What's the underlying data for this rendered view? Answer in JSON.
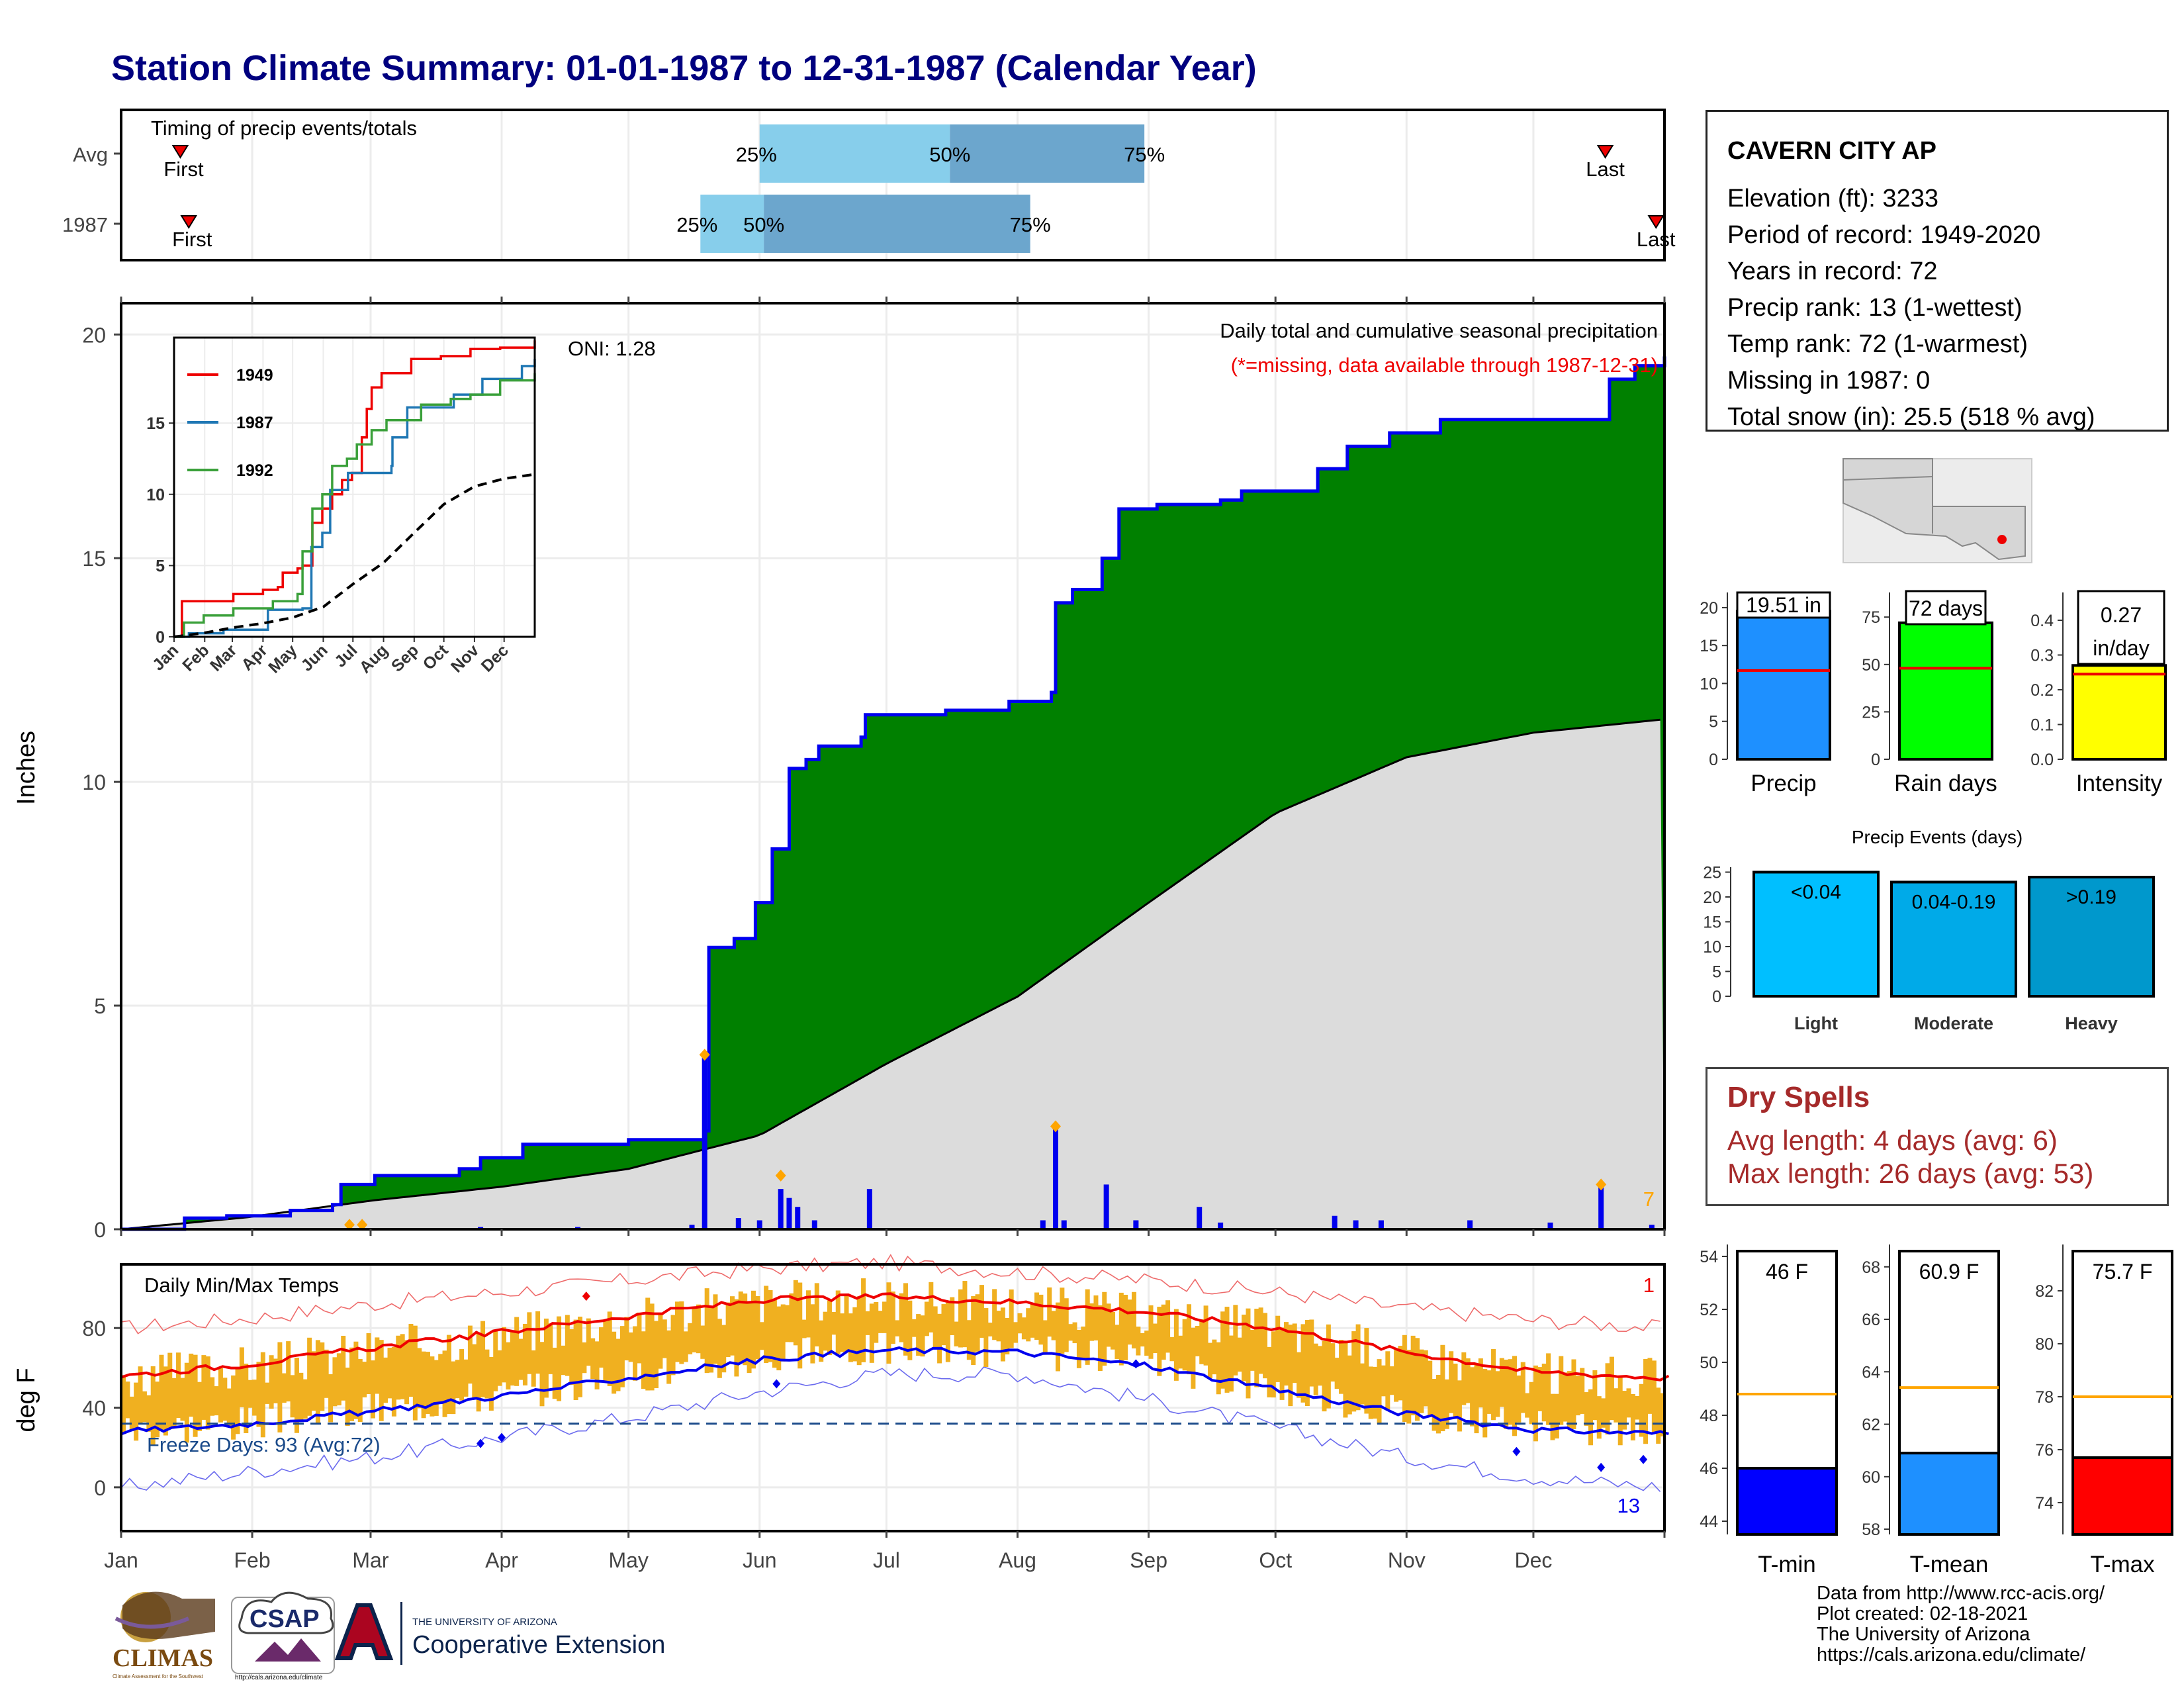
{
  "title": "Station Climate Summary: 01-01-1987 to 12-31-1987 (Calendar Year)",
  "station": {
    "name": "CAVERN CITY AP",
    "rows": [
      "Elevation (ft): 3233",
      "Period of record: 1949-2020",
      "Years in record: 72",
      "Precip rank: 13 (1-wettest)",
      "Temp rank: 72 (1-warmest)",
      "Missing in 1987: 0",
      "Total snow (in): 25.5 (518 % avg)"
    ]
  },
  "dry_spells": {
    "heading": "Dry Spells",
    "avg_length": "Avg length: 4 days (avg: 6)",
    "max_length": "Max length: 26 days (avg: 53)"
  },
  "credits": [
    "Data from http://www.rcc-acis.org/",
    "Plot created: 02-18-2021",
    "The University of Arizona",
    "https://cals.arizona.edu/climate/"
  ],
  "logos": {
    "climas": "CLIMAS",
    "climas_sub": "Climate Assessment for the Southwest",
    "csap": "CSAP",
    "csap_url": "http://cals.arizona.edu/climate",
    "ua_line1": "THE UNIVERSITY OF ARIZONA",
    "ua_line2": "Cooperative Extension"
  },
  "colors": {
    "title": "#00007f",
    "precip_area": "#008000",
    "normal_area": "#dcdcdc",
    "precip_line": "#0000ee",
    "daily_bar": "#0000ee",
    "temp_bar": "#f0b020",
    "tmax_line": "#ee0000",
    "tmin_line": "#0000ee",
    "q_light": "#87ceeb",
    "q_dark": "#6ca6cd"
  },
  "chart_data": [
    {
      "type": "bar",
      "name": "timing",
      "title": "Timing of precip events/totals",
      "rows": [
        {
          "label": "Avg",
          "first": "Jan 15",
          "q25": "Jun 1",
          "q50": "Jul 16",
          "q75": "Aug 31",
          "last": "Dec 18",
          "first_text": "First",
          "last_text": "Last"
        },
        {
          "label": "1987",
          "first": "Jan 17",
          "q25": "May 18",
          "q50": "Jun 2",
          "q75": "Aug 4",
          "last": "Dec 30",
          "first_text": "First",
          "last_text": "Last"
        }
      ],
      "quantile_labels": [
        "25%",
        "50%",
        "75%"
      ]
    },
    {
      "type": "area",
      "name": "cumulative_precip",
      "title": "Daily total and cumulative seasonal precipitation",
      "subtitle": "(*=missing, data available through 1987-12-31)",
      "annotation": "ONI: 1.28",
      "count_label": "7",
      "ylabel": "Inches",
      "ylim": [
        0,
        20.7
      ],
      "yticks": [
        0,
        5,
        10,
        15,
        20
      ],
      "cumulative_1987": [
        [
          0,
          0.0
        ],
        [
          15,
          0.25
        ],
        [
          25,
          0.3
        ],
        [
          40,
          0.42
        ],
        [
          50,
          0.55
        ],
        [
          52,
          1.0
        ],
        [
          60,
          1.2
        ],
        [
          80,
          1.35
        ],
        [
          85,
          1.6
        ],
        [
          95,
          1.9
        ],
        [
          120,
          2.0
        ],
        [
          132,
          2.0
        ],
        [
          138,
          2.2
        ],
        [
          139,
          6.3
        ],
        [
          145,
          6.5
        ],
        [
          150,
          7.3
        ],
        [
          154,
          8.5
        ],
        [
          158,
          10.3
        ],
        [
          162,
          10.5
        ],
        [
          165,
          10.8
        ],
        [
          175,
          11.0
        ],
        [
          176,
          11.5
        ],
        [
          195,
          11.6
        ],
        [
          210,
          11.8
        ],
        [
          220,
          12.0
        ],
        [
          221,
          14.0
        ],
        [
          225,
          14.3
        ],
        [
          232,
          15.0
        ],
        [
          236,
          16.1
        ],
        [
          245,
          16.2
        ],
        [
          260,
          16.3
        ],
        [
          265,
          16.5
        ],
        [
          283,
          17.0
        ],
        [
          290,
          17.5
        ],
        [
          300,
          17.8
        ],
        [
          312,
          18.1
        ],
        [
          325,
          18.1
        ],
        [
          350,
          18.1
        ],
        [
          352,
          19.0
        ],
        [
          358,
          19.3
        ],
        [
          365,
          19.51
        ]
      ],
      "normal_cumulative": [
        [
          0,
          0.0
        ],
        [
          30,
          0.27
        ],
        [
          60,
          0.65
        ],
        [
          90,
          0.95
        ],
        [
          120,
          1.35
        ],
        [
          151,
          2.1
        ],
        [
          181,
          3.7
        ],
        [
          212,
          5.2
        ],
        [
          243,
          7.3
        ],
        [
          273,
          9.3
        ],
        [
          304,
          10.55
        ],
        [
          334,
          11.1
        ],
        [
          365,
          11.4
        ]
      ],
      "daily_bars": [
        [
          54,
          0.12
        ],
        [
          57,
          0.1
        ],
        [
          85,
          0.05
        ],
        [
          108,
          0.05
        ],
        [
          135,
          0.1
        ],
        [
          138,
          3.9
        ],
        [
          146,
          0.25
        ],
        [
          151,
          0.2
        ],
        [
          156,
          0.9
        ],
        [
          158,
          0.7
        ],
        [
          160,
          0.5
        ],
        [
          164,
          0.2
        ],
        [
          177,
          0.9
        ],
        [
          218,
          0.2
        ],
        [
          221,
          2.3
        ],
        [
          223,
          0.2
        ],
        [
          233,
          1.0
        ],
        [
          240,
          0.2
        ],
        [
          255,
          0.5
        ],
        [
          260,
          0.15
        ],
        [
          287,
          0.3
        ],
        [
          292,
          0.2
        ],
        [
          298,
          0.2
        ],
        [
          319,
          0.2
        ],
        [
          338,
          0.15
        ],
        [
          350,
          0.95
        ],
        [
          362,
          0.1
        ]
      ],
      "markers": [
        [
          54,
          0.1
        ],
        [
          57,
          0.1
        ],
        [
          138,
          3.9
        ],
        [
          156,
          1.2
        ],
        [
          221,
          2.3
        ],
        [
          350,
          1.0
        ]
      ]
    },
    {
      "type": "line",
      "name": "inset_cumulative",
      "series": [
        {
          "name": "1949",
          "color": "#ee0000",
          "values": [
            [
              0,
              0
            ],
            [
              8,
              2.5
            ],
            [
              30,
              2.5
            ],
            [
              60,
              3.0
            ],
            [
              90,
              3.3
            ],
            [
              105,
              3.5
            ],
            [
              110,
              4.5
            ],
            [
              125,
              4.8
            ],
            [
              130,
              5.0
            ],
            [
              140,
              8.0
            ],
            [
              150,
              9.0
            ],
            [
              160,
              10.0
            ],
            [
              170,
              11.0
            ],
            [
              180,
              11.5
            ],
            [
              190,
              14.0
            ],
            [
              195,
              16.0
            ],
            [
              200,
              17.5
            ],
            [
              210,
              18.5
            ],
            [
              240,
              19.5
            ],
            [
              270,
              19.7
            ],
            [
              300,
              20.2
            ],
            [
              330,
              20.3
            ],
            [
              365,
              20.8
            ]
          ]
        },
        {
          "name": "1987",
          "color": "#1f77b4",
          "values": [
            [
              0,
              0
            ],
            [
              15,
              0.25
            ],
            [
              50,
              0.5
            ],
            [
              95,
              1.9
            ],
            [
              130,
              2.0
            ],
            [
              139,
              6.3
            ],
            [
              150,
              7.3
            ],
            [
              158,
              10.3
            ],
            [
              176,
              11.5
            ],
            [
              220,
              12.0
            ],
            [
              221,
              14.0
            ],
            [
              236,
              16.1
            ],
            [
              283,
              17.0
            ],
            [
              312,
              18.1
            ],
            [
              350,
              18.1
            ],
            [
              352,
              19.0
            ],
            [
              365,
              19.51
            ]
          ]
        },
        {
          "name": "1992",
          "color": "#3aa03a",
          "values": [
            [
              0,
              0
            ],
            [
              10,
              1.0
            ],
            [
              30,
              1.5
            ],
            [
              60,
              2.0
            ],
            [
              100,
              2.5
            ],
            [
              125,
              3.0
            ],
            [
              130,
              6.0
            ],
            [
              140,
              9.0
            ],
            [
              150,
              10.0
            ],
            [
              160,
              12.0
            ],
            [
              175,
              12.5
            ],
            [
              185,
              13.5
            ],
            [
              200,
              14.5
            ],
            [
              215,
              15.2
            ],
            [
              250,
              16.3
            ],
            [
              280,
              16.7
            ],
            [
              300,
              17.0
            ],
            [
              330,
              18.0
            ],
            [
              365,
              18.5
            ]
          ]
        },
        {
          "name": "",
          "color": "#000000",
          "dashed": true,
          "values": [
            [
              0,
              0
            ],
            [
              30,
              0.27
            ],
            [
              60,
              0.65
            ],
            [
              90,
              0.95
            ],
            [
              120,
              1.35
            ],
            [
              151,
              2.1
            ],
            [
              181,
              3.7
            ],
            [
              212,
              5.2
            ],
            [
              243,
              7.3
            ],
            [
              273,
              9.3
            ],
            [
              304,
              10.55
            ],
            [
              334,
              11.1
            ],
            [
              365,
              11.4
            ]
          ]
        }
      ],
      "ylim": [
        0,
        21
      ],
      "yticks": [
        0,
        5,
        10,
        15
      ],
      "xticks": [
        "Jan",
        "Feb",
        "Mar",
        "Apr",
        "May",
        "Jun",
        "Jul",
        "Aug",
        "Sep",
        "Oct",
        "Nov",
        "Dec"
      ]
    },
    {
      "type": "area",
      "name": "daily_temps",
      "title": "Daily Min/Max Temps",
      "freeze_text": "Freeze Days: 93 (Avg:72)",
      "record_high_count": "1",
      "record_low_count": "13",
      "ylabel": "deg F",
      "ylim": [
        -22,
        112
      ],
      "yticks": [
        0,
        40,
        80
      ],
      "freeze_line": 32,
      "normal_tmax": [
        [
          0,
          56
        ],
        [
          31,
          62
        ],
        [
          59,
          70
        ],
        [
          90,
          78
        ],
        [
          120,
          86
        ],
        [
          151,
          94
        ],
        [
          181,
          96
        ],
        [
          212,
          93
        ],
        [
          243,
          88
        ],
        [
          273,
          80
        ],
        [
          304,
          68
        ],
        [
          334,
          58
        ],
        [
          365,
          55
        ]
      ],
      "normal_tmin": [
        [
          0,
          28
        ],
        [
          31,
          32
        ],
        [
          59,
          38
        ],
        [
          90,
          46
        ],
        [
          120,
          55
        ],
        [
          151,
          64
        ],
        [
          181,
          69
        ],
        [
          212,
          68
        ],
        [
          243,
          61
        ],
        [
          273,
          49
        ],
        [
          304,
          37
        ],
        [
          334,
          29
        ],
        [
          365,
          27
        ]
      ],
      "record_tmax": [
        [
          0,
          80
        ],
        [
          31,
          85
        ],
        [
          59,
          92
        ],
        [
          90,
          98
        ],
        [
          120,
          104
        ],
        [
          151,
          110
        ],
        [
          181,
          113
        ],
        [
          212,
          108
        ],
        [
          243,
          104
        ],
        [
          273,
          98
        ],
        [
          304,
          90
        ],
        [
          334,
          84
        ],
        [
          365,
          80
        ]
      ],
      "record_tmin": [
        [
          0,
          0
        ],
        [
          31,
          8
        ],
        [
          59,
          15
        ],
        [
          90,
          25
        ],
        [
          120,
          35
        ],
        [
          151,
          48
        ],
        [
          181,
          57
        ],
        [
          212,
          57
        ],
        [
          243,
          44
        ],
        [
          273,
          30
        ],
        [
          304,
          15
        ],
        [
          334,
          5
        ],
        [
          365,
          0
        ]
      ],
      "xticks": [
        "Jan",
        "Feb",
        "Mar",
        "Apr",
        "May",
        "Jun",
        "Jul",
        "Aug",
        "Sep",
        "Oct",
        "Nov",
        "Dec"
      ]
    },
    {
      "type": "bar",
      "name": "precip_totals",
      "bars": [
        {
          "category": "Precip",
          "value": 19.51,
          "label": "19.51 in",
          "avg": 11.7,
          "ylim": [
            0,
            22
          ],
          "yticks": [
            0,
            5,
            10,
            15,
            20
          ],
          "color": "#1e90ff"
        },
        {
          "category": "Rain days",
          "value": 72,
          "label": "72 days",
          "avg": 48,
          "ylim": [
            0,
            88
          ],
          "yticks": [
            0,
            25,
            50,
            75
          ],
          "color": "#00ff00"
        },
        {
          "category": "Intensity",
          "value": 0.27,
          "label_line1": "0.27",
          "label_line2": "in/day",
          "avg": 0.245,
          "ylim": [
            0,
            0.48
          ],
          "yticks": [
            0.0,
            0.1,
            0.2,
            0.3,
            0.4
          ],
          "color": "#ffff00"
        }
      ]
    },
    {
      "type": "bar",
      "name": "precip_events",
      "title": "Precip Events (days)",
      "categories": [
        "Light",
        "Moderate",
        "Heavy"
      ],
      "bar_labels": [
        "<0.04",
        "0.04-0.19",
        ">0.19"
      ],
      "values": [
        25,
        23,
        24
      ],
      "ylim": [
        0,
        26
      ],
      "yticks": [
        0,
        5,
        10,
        15,
        20,
        25
      ],
      "colors": [
        "#00bfff",
        "#00aae8",
        "#0098cc"
      ]
    },
    {
      "type": "bar",
      "name": "temp_means",
      "bars": [
        {
          "category": "T-min",
          "value": 46,
          "label": "46 F",
          "avg": 48.8,
          "ylim": [
            43.5,
            54.2
          ],
          "yticks": [
            44,
            46,
            48,
            50,
            52,
            54
          ],
          "color": "#0000ff"
        },
        {
          "category": "T-mean",
          "value": 60.9,
          "label": "60.9 F",
          "avg": 63.4,
          "ylim": [
            57.8,
            68.6
          ],
          "yticks": [
            58,
            60,
            62,
            64,
            66,
            68
          ],
          "color": "#1e90ff"
        },
        {
          "category": "T-max",
          "value": 75.7,
          "label": "75.7 F",
          "avg": 78.0,
          "ylim": [
            72.8,
            83.5
          ],
          "yticks": [
            74,
            76,
            78,
            80,
            82
          ],
          "color": "#ff0000"
        }
      ]
    }
  ]
}
